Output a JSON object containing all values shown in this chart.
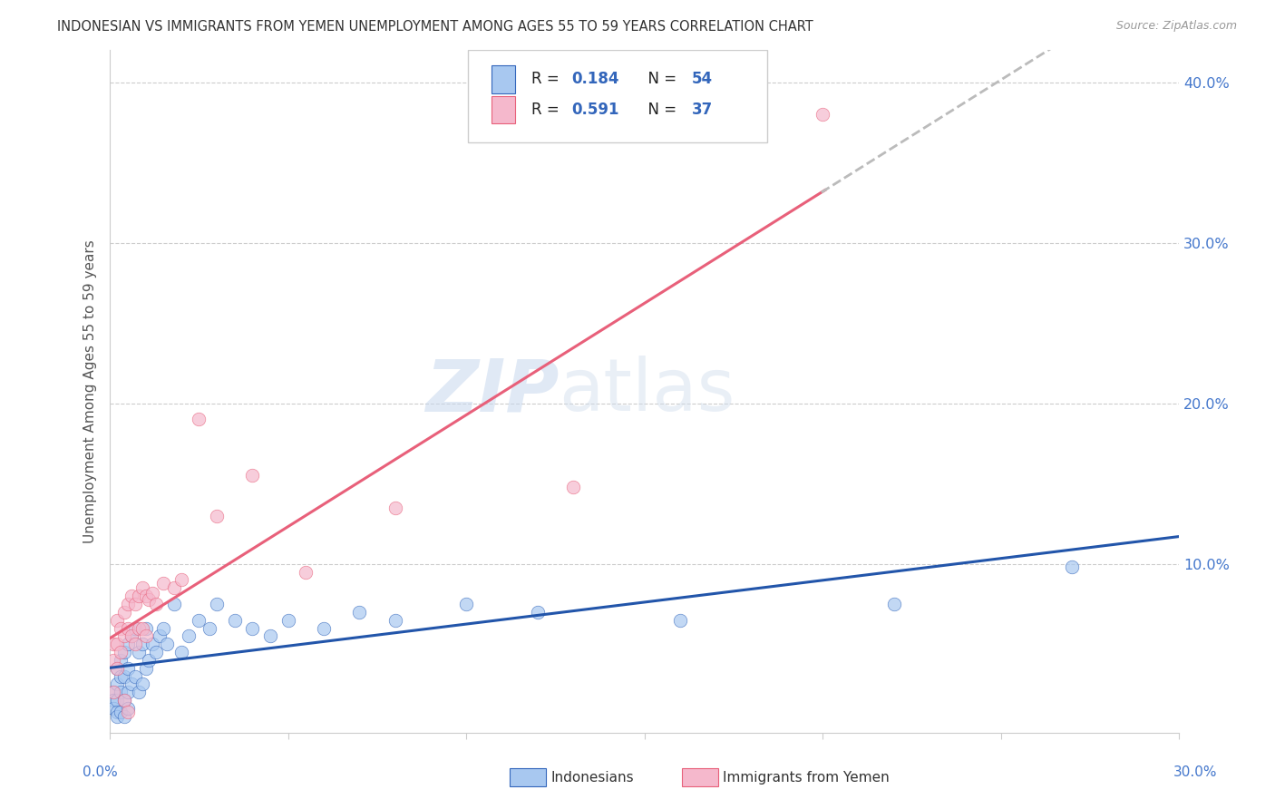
{
  "title": "INDONESIAN VS IMMIGRANTS FROM YEMEN UNEMPLOYMENT AMONG AGES 55 TO 59 YEARS CORRELATION CHART",
  "source": "Source: ZipAtlas.com",
  "ylabel": "Unemployment Among Ages 55 to 59 years",
  "xlim": [
    0.0,
    0.3
  ],
  "ylim": [
    -0.005,
    0.42
  ],
  "yticks": [
    0.0,
    0.1,
    0.2,
    0.3,
    0.4
  ],
  "ytick_labels": [
    "",
    "10.0%",
    "20.0%",
    "30.0%",
    "40.0%"
  ],
  "color_blue": "#A8C8F0",
  "color_pink": "#F5B8CC",
  "color_blue_dark": "#3366BB",
  "color_pink_dark": "#E8607A",
  "color_trend_blue": "#2255AA",
  "color_trend_pink": "#E8607A",
  "watermark_zip": "ZIP",
  "watermark_atlas": "atlas",
  "legend_label1": "Indonesians",
  "legend_label2": "Immigrants from Yemen",
  "indonesian_x": [
    0.001,
    0.001,
    0.001,
    0.002,
    0.002,
    0.002,
    0.002,
    0.002,
    0.003,
    0.003,
    0.003,
    0.003,
    0.004,
    0.004,
    0.004,
    0.004,
    0.005,
    0.005,
    0.005,
    0.005,
    0.006,
    0.006,
    0.007,
    0.007,
    0.008,
    0.008,
    0.009,
    0.009,
    0.01,
    0.01,
    0.011,
    0.012,
    0.013,
    0.014,
    0.015,
    0.016,
    0.018,
    0.02,
    0.022,
    0.025,
    0.028,
    0.03,
    0.035,
    0.04,
    0.045,
    0.05,
    0.06,
    0.07,
    0.08,
    0.1,
    0.12,
    0.16,
    0.22,
    0.27
  ],
  "indonesian_y": [
    0.02,
    0.015,
    0.01,
    0.035,
    0.025,
    0.015,
    0.008,
    0.005,
    0.04,
    0.03,
    0.02,
    0.008,
    0.045,
    0.03,
    0.015,
    0.005,
    0.05,
    0.035,
    0.02,
    0.01,
    0.055,
    0.025,
    0.06,
    0.03,
    0.045,
    0.02,
    0.05,
    0.025,
    0.06,
    0.035,
    0.04,
    0.05,
    0.045,
    0.055,
    0.06,
    0.05,
    0.075,
    0.045,
    0.055,
    0.065,
    0.06,
    0.075,
    0.065,
    0.06,
    0.055,
    0.065,
    0.06,
    0.07,
    0.065,
    0.075,
    0.07,
    0.065,
    0.075,
    0.098
  ],
  "yemen_x": [
    0.001,
    0.001,
    0.001,
    0.002,
    0.002,
    0.002,
    0.003,
    0.003,
    0.004,
    0.004,
    0.004,
    0.005,
    0.005,
    0.005,
    0.006,
    0.006,
    0.007,
    0.007,
    0.008,
    0.008,
    0.009,
    0.009,
    0.01,
    0.01,
    0.011,
    0.012,
    0.013,
    0.015,
    0.018,
    0.02,
    0.025,
    0.03,
    0.04,
    0.055,
    0.08,
    0.13,
    0.2
  ],
  "yemen_y": [
    0.05,
    0.04,
    0.02,
    0.065,
    0.05,
    0.035,
    0.06,
    0.045,
    0.07,
    0.055,
    0.015,
    0.075,
    0.06,
    0.008,
    0.08,
    0.055,
    0.075,
    0.05,
    0.08,
    0.06,
    0.085,
    0.06,
    0.08,
    0.055,
    0.078,
    0.082,
    0.075,
    0.088,
    0.085,
    0.09,
    0.19,
    0.13,
    0.155,
    0.095,
    0.135,
    0.148,
    0.38
  ]
}
